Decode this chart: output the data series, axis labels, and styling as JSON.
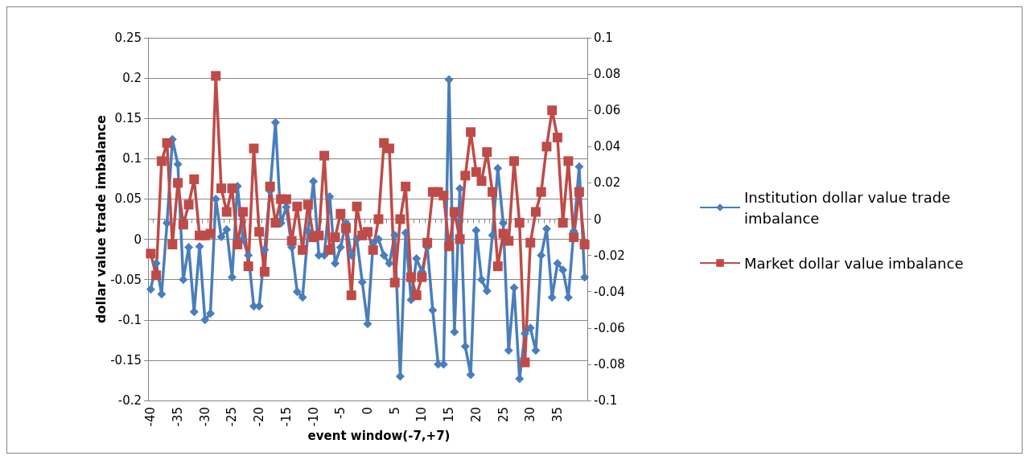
{
  "chart_data": {
    "type": "line",
    "xlabel": "event window(-7,+7)",
    "ylabel": "dollar value trade imbalance",
    "categories": [
      "-40",
      null,
      null,
      null,
      null,
      "-35",
      null,
      null,
      null,
      null,
      "-30",
      null,
      null,
      null,
      null,
      "-25",
      null,
      null,
      null,
      null,
      "-20",
      null,
      null,
      null,
      null,
      "-15",
      null,
      null,
      null,
      null,
      "-10",
      null,
      null,
      null,
      null,
      "-5",
      null,
      null,
      null,
      null,
      "0",
      null,
      null,
      null,
      null,
      "5",
      null,
      null,
      null,
      null,
      "10",
      null,
      null,
      null,
      null,
      "15",
      null,
      null,
      null,
      null,
      "20",
      null,
      null,
      null,
      null,
      "25",
      null,
      null,
      null,
      null,
      "30",
      null,
      null,
      null,
      null,
      "35",
      null,
      null,
      null,
      null,
      null
    ],
    "series": [
      {
        "name": "Institution dollar value trade imbalance",
        "color": "#4a7ebb",
        "marker": "diamond",
        "values": [
          -0.062,
          -0.03,
          -0.068,
          0.02,
          0.124,
          0.093,
          -0.05,
          -0.01,
          -0.09,
          -0.009,
          -0.1,
          -0.092,
          0.05,
          0.003,
          0.012,
          -0.047,
          0.066,
          0.0,
          -0.02,
          -0.083,
          -0.083,
          -0.013,
          0.06,
          0.145,
          0.02,
          0.04,
          -0.01,
          -0.065,
          -0.072,
          0.01,
          0.072,
          -0.02,
          -0.02,
          0.053,
          -0.03,
          -0.01,
          0.02,
          -0.02,
          0.0,
          -0.053,
          -0.105,
          -0.005,
          0.0,
          -0.02,
          -0.03,
          0.005,
          -0.17,
          0.008,
          -0.075,
          -0.024,
          -0.04,
          -0.01,
          -0.088,
          -0.155,
          -0.155,
          0.198,
          -0.115,
          0.063,
          -0.133,
          -0.168,
          0.011,
          -0.05,
          -0.064,
          0.005,
          0.088,
          0.02,
          -0.138,
          -0.06,
          -0.173,
          -0.117,
          -0.11,
          -0.138,
          -0.02,
          0.013,
          -0.072,
          -0.03,
          -0.038,
          -0.072,
          0.01,
          0.09,
          -0.047
        ]
      },
      {
        "name": "Market dollar value imbalance",
        "color": "#be4b48",
        "marker": "square",
        "axis": "y2",
        "values": [
          -0.019,
          -0.031,
          0.032,
          0.042,
          -0.014,
          0.02,
          -0.003,
          0.008,
          0.022,
          -0.009,
          -0.009,
          -0.008,
          0.079,
          0.017,
          0.004,
          0.017,
          -0.014,
          0.004,
          -0.026,
          0.039,
          -0.007,
          -0.029,
          0.018,
          -0.002,
          0.011,
          0.011,
          -0.012,
          0.007,
          -0.017,
          0.008,
          -0.01,
          -0.009,
          0.035,
          -0.017,
          -0.01,
          0.003,
          -0.005,
          -0.042,
          0.007,
          -0.009,
          -0.007,
          -0.017,
          0.0,
          0.042,
          0.039,
          -0.035,
          0.0,
          0.018,
          -0.032,
          -0.042,
          -0.032,
          -0.013,
          0.015,
          0.015,
          0.013,
          -0.015,
          0.004,
          -0.011,
          0.024,
          0.048,
          0.026,
          0.021,
          0.037,
          0.015,
          -0.026,
          -0.008,
          -0.012,
          0.032,
          -0.002,
          -0.079,
          -0.013,
          0.004,
          0.015,
          0.04,
          0.06,
          0.045,
          -0.002,
          0.032,
          -0.01,
          0.015,
          -0.014
        ]
      }
    ],
    "ylim": [
      -0.2,
      0.25
    ],
    "yticks": [
      -0.2,
      -0.15,
      -0.1,
      -0.05,
      0,
      0.05,
      0.1,
      0.15,
      0.2,
      0.25
    ],
    "y2lim": [
      -0.1,
      0.1
    ],
    "y2ticks": [
      -0.1,
      -0.08,
      -0.06,
      -0.04,
      -0.02,
      0,
      0.02,
      0.04,
      0.06,
      0.08,
      0.1
    ],
    "grid": "y",
    "legend": "right",
    "line_style": "solid"
  }
}
